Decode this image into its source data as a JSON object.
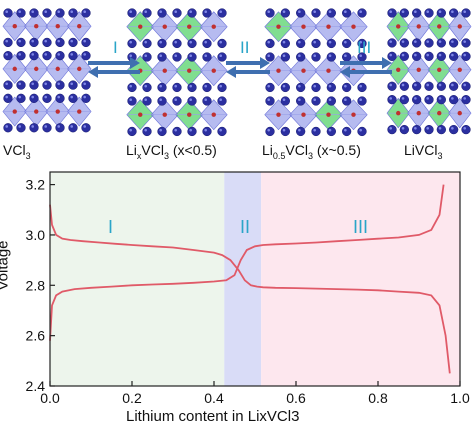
{
  "structures": [
    {
      "formula_main": "VCl",
      "formula_sub": "3",
      "formula_tail": ""
    },
    {
      "formula_main": "Li",
      "formula_sub": "x",
      "formula_mid": "VCl",
      "formula_sub2": "3",
      "formula_tail": " (x<0.5)"
    },
    {
      "formula_main": "Li",
      "formula_sub": "0.5",
      "formula_mid": "VCl",
      "formula_sub2": "3",
      "formula_tail": " (x~0.5)"
    },
    {
      "formula_main": "LiVCl",
      "formula_sub": "3",
      "formula_tail": ""
    }
  ],
  "transitions": [
    "I",
    "II",
    "III"
  ],
  "colors": {
    "arrow": "#3f6fb0",
    "roman": "#2aa5c8",
    "curve": "#e05a68",
    "region1": "#edf5ec",
    "region2": "#d9dcf7",
    "region3": "#fde7ee",
    "atom_v": "#2b2fa0",
    "atom_cl": "#c03030",
    "octa_blue": "#8f96e8",
    "octa_green": "#3ccc55"
  },
  "chart_data": {
    "type": "line",
    "xlabel": "Lithium content in LixVCl3",
    "ylabel": "Voltage",
    "xlim": [
      0.0,
      1.0
    ],
    "ylim": [
      2.4,
      3.25
    ],
    "x_ticks": [
      "0.0",
      "0.2",
      "0.4",
      "0.6",
      "0.8",
      "1.0"
    ],
    "y_ticks": [
      "2.4",
      "2.6",
      "2.8",
      "3.0",
      "3.2"
    ],
    "regions": [
      {
        "label": "I",
        "x_start": 0.0,
        "x_end": 0.425
      },
      {
        "label": "II",
        "x_start": 0.425,
        "x_end": 0.515
      },
      {
        "label": "III",
        "x_start": 0.515,
        "x_end": 1.0
      }
    ],
    "series": [
      {
        "x": [
          0.0,
          0.005,
          0.015,
          0.03,
          0.05,
          0.08,
          0.12,
          0.16,
          0.2,
          0.25,
          0.3,
          0.35,
          0.4,
          0.42,
          0.44,
          0.46,
          0.475,
          0.49,
          0.505,
          0.52,
          0.55,
          0.6,
          0.65,
          0.7,
          0.75,
          0.8,
          0.85,
          0.9,
          0.93,
          0.95,
          0.965,
          0.975
        ],
        "y": [
          3.12,
          3.04,
          3.0,
          2.985,
          2.98,
          2.975,
          2.97,
          2.965,
          2.96,
          2.955,
          2.95,
          2.94,
          2.93,
          2.92,
          2.9,
          2.86,
          2.82,
          2.8,
          2.795,
          2.792,
          2.79,
          2.789,
          2.787,
          2.785,
          2.783,
          2.78,
          2.775,
          2.77,
          2.76,
          2.72,
          2.6,
          2.45
        ]
      },
      {
        "x": [
          0.0,
          0.005,
          0.015,
          0.03,
          0.06,
          0.1,
          0.15,
          0.2,
          0.25,
          0.3,
          0.35,
          0.4,
          0.43,
          0.45,
          0.465,
          0.48,
          0.5,
          0.52,
          0.55,
          0.6,
          0.65,
          0.7,
          0.75,
          0.8,
          0.85,
          0.9,
          0.93,
          0.95,
          0.96
        ],
        "y": [
          2.58,
          2.72,
          2.76,
          2.775,
          2.785,
          2.79,
          2.795,
          2.8,
          2.803,
          2.806,
          2.81,
          2.815,
          2.82,
          2.84,
          2.9,
          2.94,
          2.955,
          2.96,
          2.963,
          2.966,
          2.97,
          2.975,
          2.98,
          2.985,
          2.99,
          3.0,
          3.02,
          3.08,
          3.2
        ]
      }
    ]
  }
}
